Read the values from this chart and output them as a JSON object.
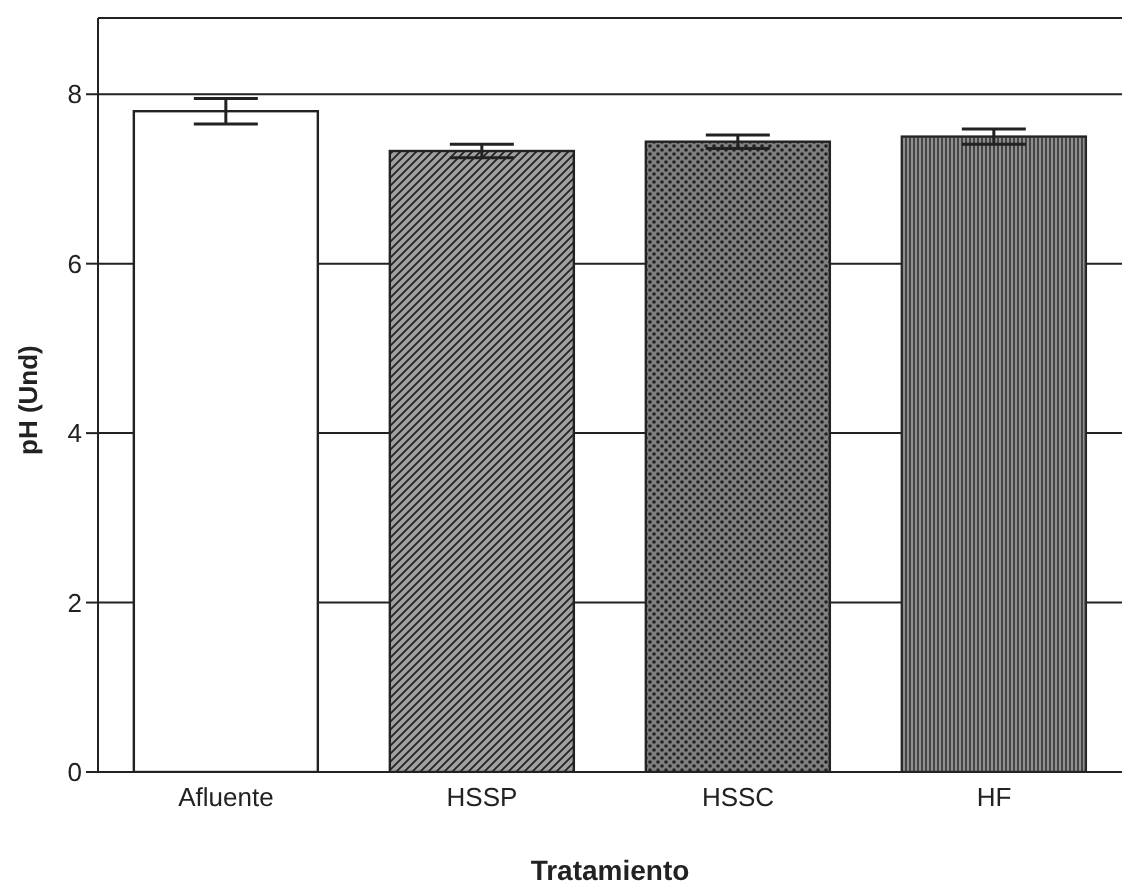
{
  "chart_data": {
    "type": "bar",
    "xlabel": "Tratamiento",
    "ylabel": "pH (Und)",
    "categories": [
      "Afluente",
      "HSSP",
      "HSSC",
      "HF"
    ],
    "values": [
      7.8,
      7.33,
      7.44,
      7.5
    ],
    "errors": [
      0.15,
      0.08,
      0.08,
      0.09
    ],
    "colors": [
      "#ffffff",
      "#a0a0a0",
      "#808080",
      "#909090"
    ],
    "ylim": [
      0,
      8.9
    ],
    "yticks": [
      0,
      2,
      4,
      6,
      8
    ],
    "grid": "y"
  }
}
